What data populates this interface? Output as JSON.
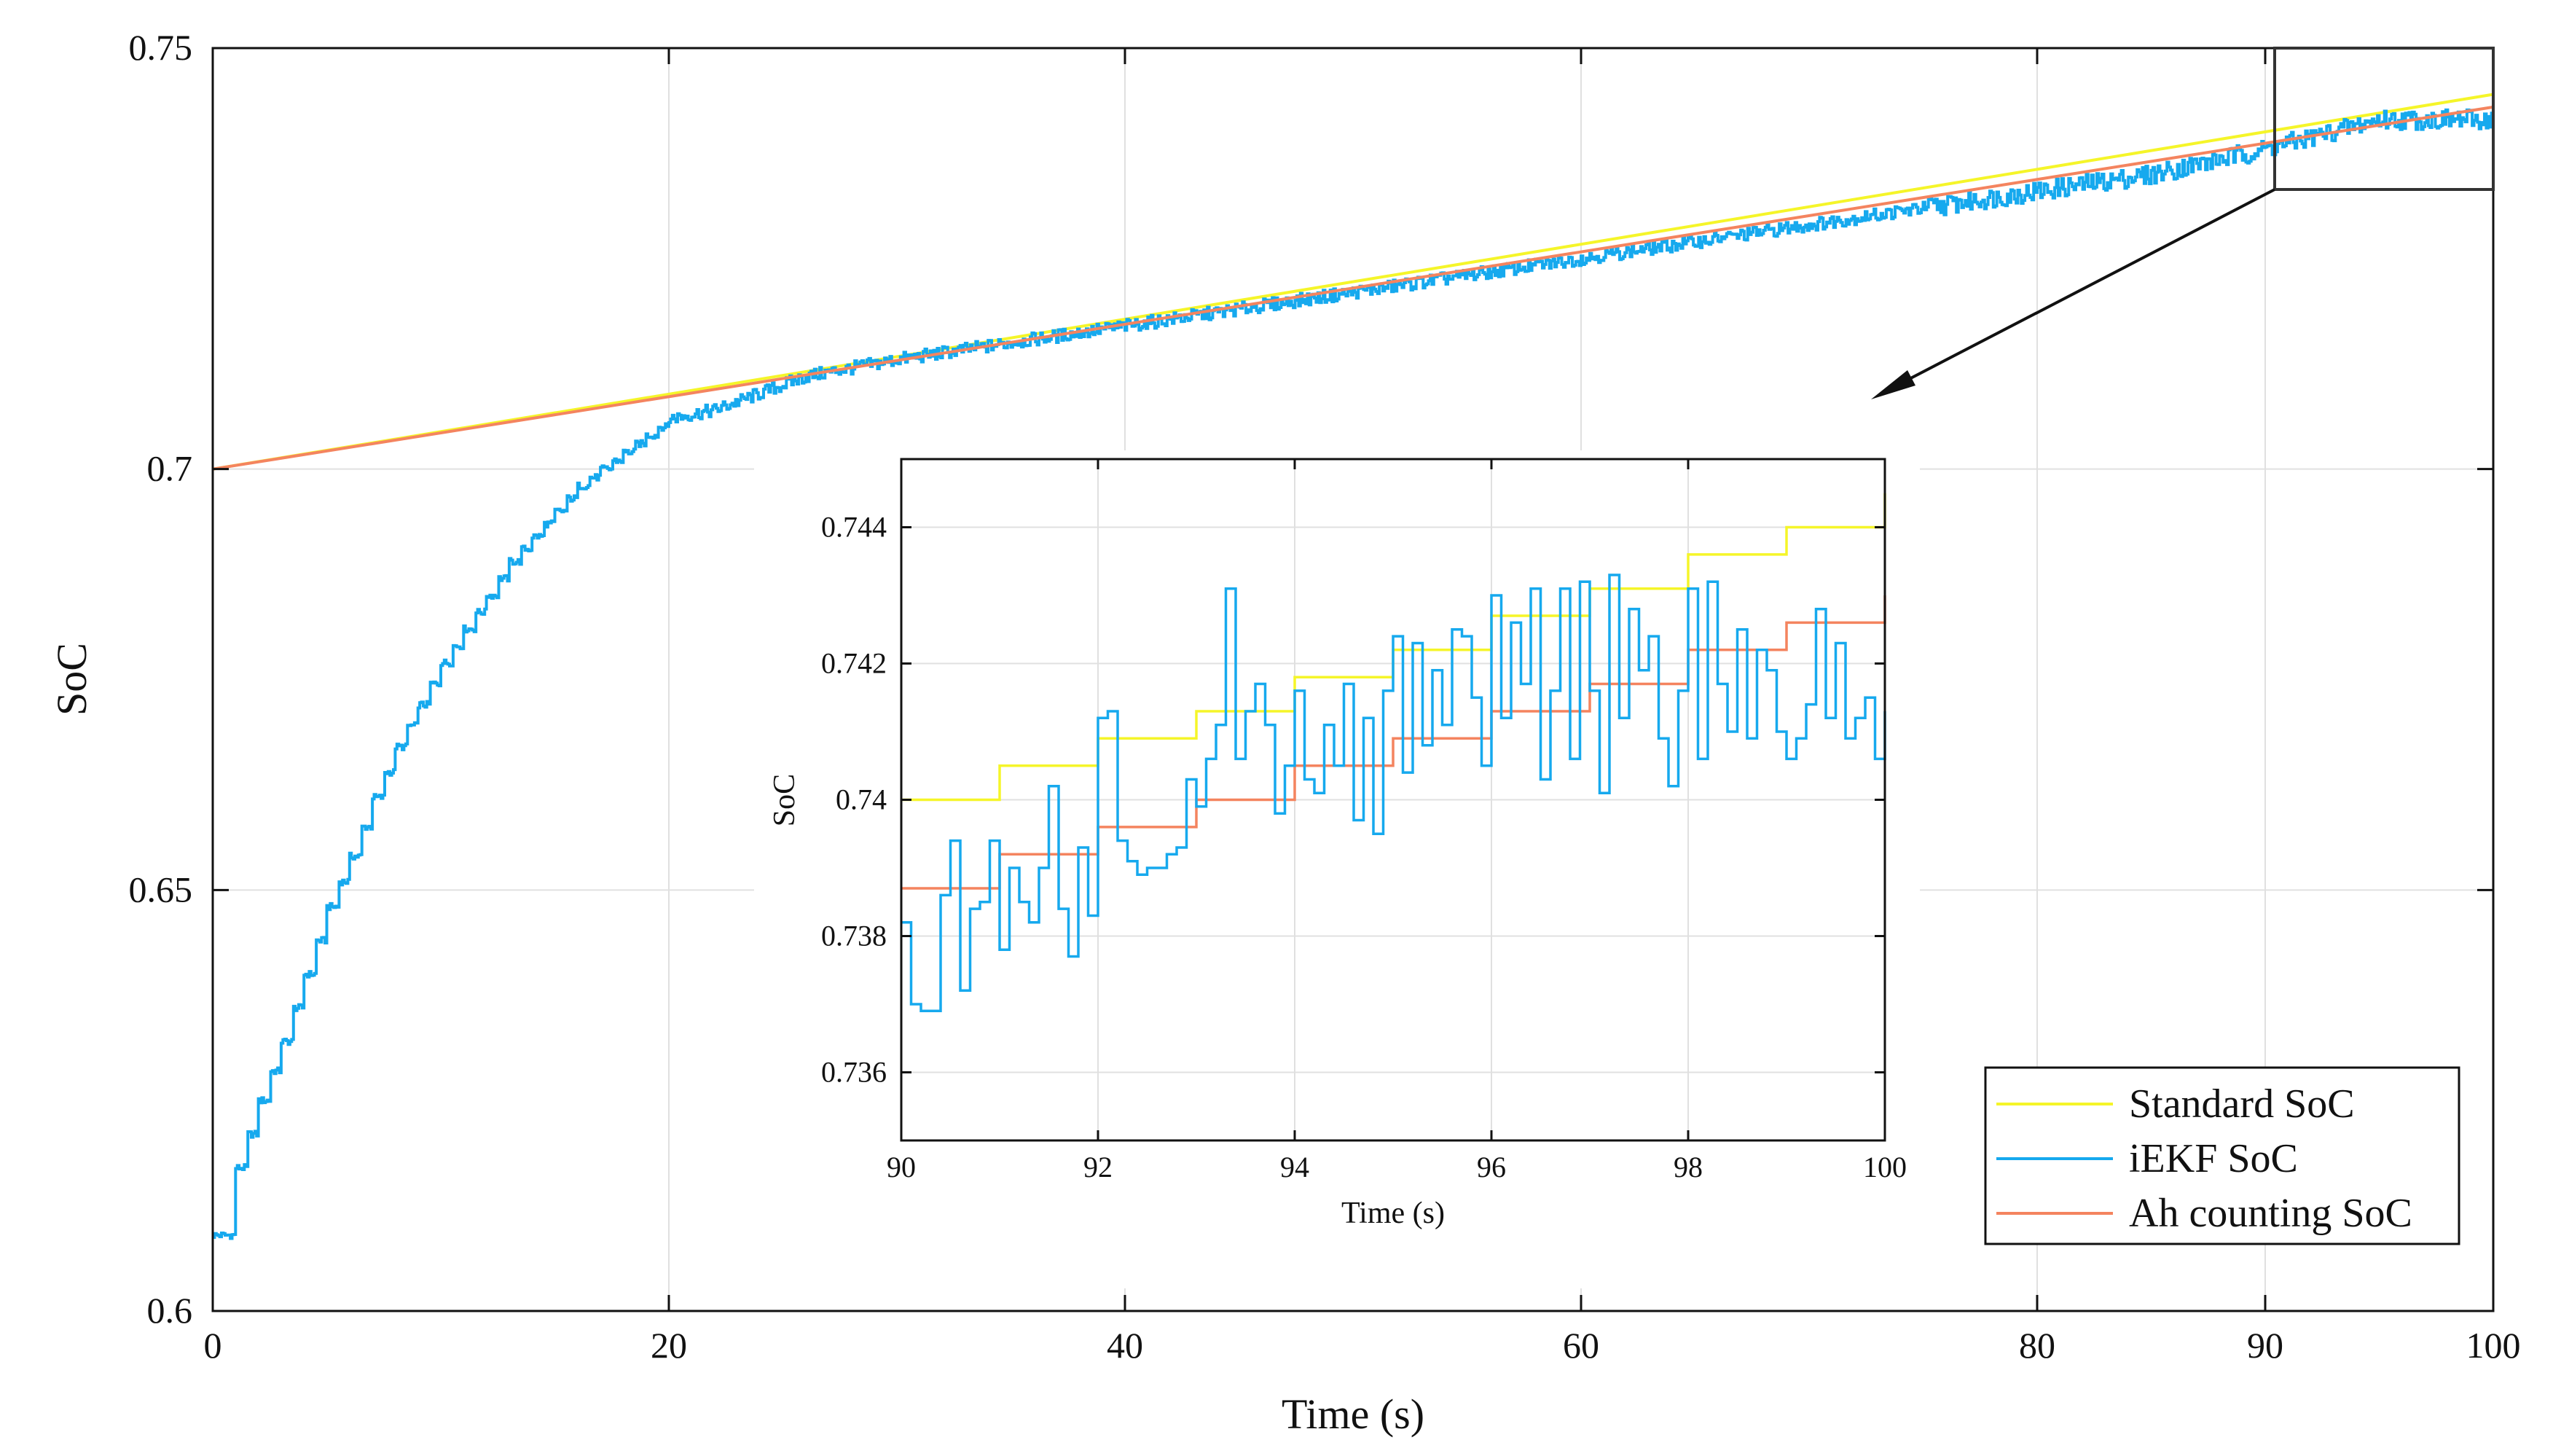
{
  "chart_data": [
    {
      "id": "main",
      "type": "line",
      "title": "",
      "xlabel": "Time (s)",
      "ylabel": "SoC",
      "xlim": [
        0,
        100
      ],
      "ylim": [
        0.6,
        0.75
      ],
      "xticks": [
        0,
        20,
        40,
        60,
        80,
        90,
        100
      ],
      "xtick_labels": [
        "0",
        "20",
        "40",
        "60",
        "80",
        "90",
        "100"
      ],
      "yticks": [
        0.6,
        0.65,
        0.7,
        0.75
      ],
      "ytick_labels": [
        "0.6",
        "0.65",
        "0.7",
        "0.75"
      ],
      "grid": true,
      "legend_position": "bottom-right",
      "series": [
        {
          "name": "Standard SoC",
          "color": "#f5f529",
          "style": "line",
          "x": [
            0,
            100
          ],
          "y": [
            0.7,
            0.7445
          ]
        },
        {
          "name": "iEKF SoC",
          "color": "#16a9ee",
          "style": "noisy-step",
          "x": [
            0,
            0.5,
            1,
            2,
            3,
            4,
            5,
            6,
            7,
            8,
            9,
            10,
            11,
            12,
            13,
            14,
            15,
            16,
            17,
            18,
            19,
            20,
            22,
            24,
            26,
            28,
            30,
            35,
            40,
            45,
            50,
            55,
            60,
            65,
            70,
            75,
            80,
            85,
            90,
            95,
            100
          ],
          "y": [
            0.609,
            0.609,
            0.617,
            0.625,
            0.632,
            0.64,
            0.648,
            0.654,
            0.661,
            0.667,
            0.672,
            0.677,
            0.681,
            0.685,
            0.689,
            0.692,
            0.695,
            0.698,
            0.7,
            0.702,
            0.704,
            0.706,
            0.707,
            0.709,
            0.711,
            0.712,
            0.713,
            0.715,
            0.717,
            0.719,
            0.721,
            0.723,
            0.725,
            0.727,
            0.729,
            0.731,
            0.733,
            0.735,
            0.738,
            0.7415,
            0.7415
          ]
        },
        {
          "name": "Ah counting SoC",
          "color": "#f4845f",
          "style": "line",
          "x": [
            0,
            100
          ],
          "y": [
            0.7,
            0.743
          ]
        }
      ],
      "annotations": [
        {
          "type": "zoom-box",
          "x_range": [
            90,
            100
          ],
          "y_range": [
            0.7335,
            0.7465
          ]
        },
        {
          "type": "arrow",
          "text": "points from zoom box to inset"
        }
      ]
    },
    {
      "id": "inset",
      "type": "line",
      "title": "",
      "xlabel": "Time (s)",
      "ylabel": "SoC",
      "xlim": [
        90,
        100
      ],
      "ylim": [
        0.735,
        0.745
      ],
      "xticks": [
        90,
        92,
        94,
        96,
        98,
        100
      ],
      "xtick_labels": [
        "90",
        "92",
        "94",
        "96",
        "98",
        "100"
      ],
      "yticks": [
        0.736,
        0.738,
        0.74,
        0.742,
        0.744
      ],
      "ytick_labels": [
        "0.736",
        "0.738",
        "0.74",
        "0.742",
        "0.744"
      ],
      "grid": true,
      "series": [
        {
          "name": "Standard SoC",
          "color": "#f5f529",
          "style": "step",
          "x": [
            90,
            91,
            92,
            93,
            94,
            95,
            96,
            97,
            98,
            99,
            100
          ],
          "y": [
            0.74,
            0.7405,
            0.7409,
            0.7413,
            0.7418,
            0.7422,
            0.7427,
            0.7431,
            0.7436,
            0.744,
            0.7445
          ]
        },
        {
          "name": "Ah counting SoC",
          "color": "#f4845f",
          "style": "step",
          "x": [
            90,
            91,
            92,
            93,
            94,
            95,
            96,
            97,
            98,
            99,
            100
          ],
          "y": [
            0.7387,
            0.7392,
            0.7396,
            0.74,
            0.7405,
            0.7409,
            0.7413,
            0.7417,
            0.7422,
            0.7426,
            0.743
          ]
        },
        {
          "name": "iEKF SoC",
          "color": "#16a9ee",
          "style": "step",
          "x": [
            90,
            90.1,
            90.2,
            90.4,
            90.5,
            90.6,
            90.7,
            90.8,
            90.9,
            91.0,
            91.1,
            91.2,
            91.3,
            91.4,
            91.5,
            91.6,
            91.7,
            91.8,
            91.9,
            92.0,
            92.1,
            92.2,
            92.3,
            92.4,
            92.5,
            92.6,
            92.7,
            92.8,
            92.9,
            93.0,
            93.1,
            93.2,
            93.3,
            93.4,
            93.5,
            93.6,
            93.7,
            93.8,
            93.9,
            94.0,
            94.1,
            94.2,
            94.3,
            94.4,
            94.5,
            94.6,
            94.7,
            94.8,
            94.9,
            95.0,
            95.1,
            95.2,
            95.3,
            95.4,
            95.5,
            95.6,
            95.7,
            95.8,
            95.9,
            96.0,
            96.1,
            96.2,
            96.3,
            96.4,
            96.5,
            96.6,
            96.7,
            96.8,
            96.9,
            97.0,
            97.1,
            97.2,
            97.3,
            97.4,
            97.5,
            97.6,
            97.7,
            97.8,
            97.9,
            98.0,
            98.1,
            98.2,
            98.3,
            98.4,
            98.5,
            98.6,
            98.7,
            98.8,
            98.9,
            99.0,
            99.1,
            99.2,
            99.3,
            99.4,
            99.5,
            99.6,
            99.7,
            99.8,
            99.9,
            100
          ],
          "y": [
            0.7382,
            0.737,
            0.7369,
            0.7386,
            0.7394,
            0.7372,
            0.7384,
            0.7385,
            0.7394,
            0.7378,
            0.739,
            0.7385,
            0.7382,
            0.739,
            0.7402,
            0.7384,
            0.7377,
            0.7393,
            0.7383,
            0.7412,
            0.7413,
            0.7394,
            0.7391,
            0.7389,
            0.739,
            0.739,
            0.7392,
            0.7393,
            0.7403,
            0.7399,
            0.7406,
            0.7411,
            0.7431,
            0.7406,
            0.7413,
            0.7417,
            0.7411,
            0.7398,
            0.7405,
            0.7416,
            0.7403,
            0.7401,
            0.7411,
            0.7405,
            0.7417,
            0.7397,
            0.7412,
            0.7395,
            0.7416,
            0.7424,
            0.7404,
            0.7423,
            0.7408,
            0.7419,
            0.7411,
            0.7425,
            0.7424,
            0.7415,
            0.7405,
            0.743,
            0.7412,
            0.7426,
            0.7417,
            0.7431,
            0.7403,
            0.7416,
            0.7431,
            0.7406,
            0.7432,
            0.7416,
            0.7401,
            0.7433,
            0.7412,
            0.7428,
            0.7419,
            0.7424,
            0.7409,
            0.7402,
            0.7416,
            0.7431,
            0.7406,
            0.7432,
            0.7417,
            0.741,
            0.7425,
            0.7409,
            0.7422,
            0.7419,
            0.741,
            0.7406,
            0.7409,
            0.7414,
            0.7428,
            0.7412,
            0.7423,
            0.7409,
            0.7412,
            0.7415,
            0.7406,
            0.7413
          ]
        }
      ]
    }
  ],
  "legend": {
    "items": [
      {
        "label": "Standard SoC",
        "color": "#f5f529"
      },
      {
        "label": "iEKF SoC",
        "color": "#16a9ee"
      },
      {
        "label": "Ah counting SoC",
        "color": "#f4845f"
      }
    ]
  }
}
